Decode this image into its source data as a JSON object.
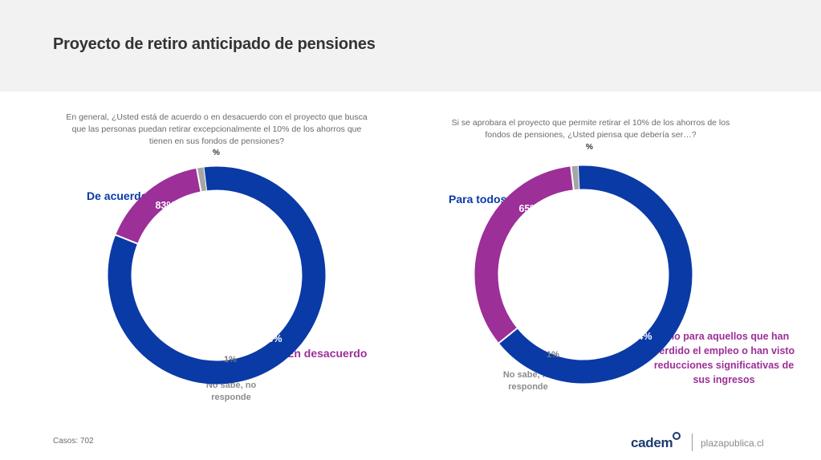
{
  "header": {
    "title": "Proyecto de retiro anticipado de pensiones"
  },
  "colors": {
    "blue": "#0a3aa6",
    "magenta": "#9c2f98",
    "gray": "#a6a6a6",
    "dark_gray_text": "#8c8c8c"
  },
  "chart_data": [
    {
      "type": "pie",
      "question": "En general, ¿Usted está de acuerdo o en desacuerdo con el proyecto que busca que las personas puedan retirar excepcionalmente el 10% de los ahorros que tienen en sus fondos de pensiones?",
      "unit": "%",
      "slices": [
        {
          "label": "De acuerdo",
          "value": 83,
          "value_label": "83%",
          "color": "#0a3aa6"
        },
        {
          "label": "En desacuerdo",
          "value": 16,
          "value_label": "16%",
          "color": "#9c2f98"
        },
        {
          "label": "No sabe, no responde",
          "value": 1,
          "value_label": "1%",
          "color": "#a6a6a6"
        }
      ]
    },
    {
      "type": "pie",
      "question": "Si se aprobara el proyecto que permite retirar el 10% de los ahorros de los fondos de pensiones, ¿Usted piensa que debería ser…?",
      "unit": "%",
      "slices": [
        {
          "label": "Para todos",
          "value": 65,
          "value_label": "65%",
          "color": "#0a3aa6"
        },
        {
          "label": "Sólo para aquellos que han perdido el empleo o han visto reducciones significativas de sus ingresos",
          "value": 34,
          "value_label": "34%",
          "color": "#9c2f98"
        },
        {
          "label": "No sabe, no responde",
          "value": 1,
          "value_label": "1%",
          "color": "#a6a6a6"
        }
      ]
    }
  ],
  "footer": {
    "casos": "Casos: 702",
    "logo": "cadem",
    "site": "plazapublica.cl"
  }
}
